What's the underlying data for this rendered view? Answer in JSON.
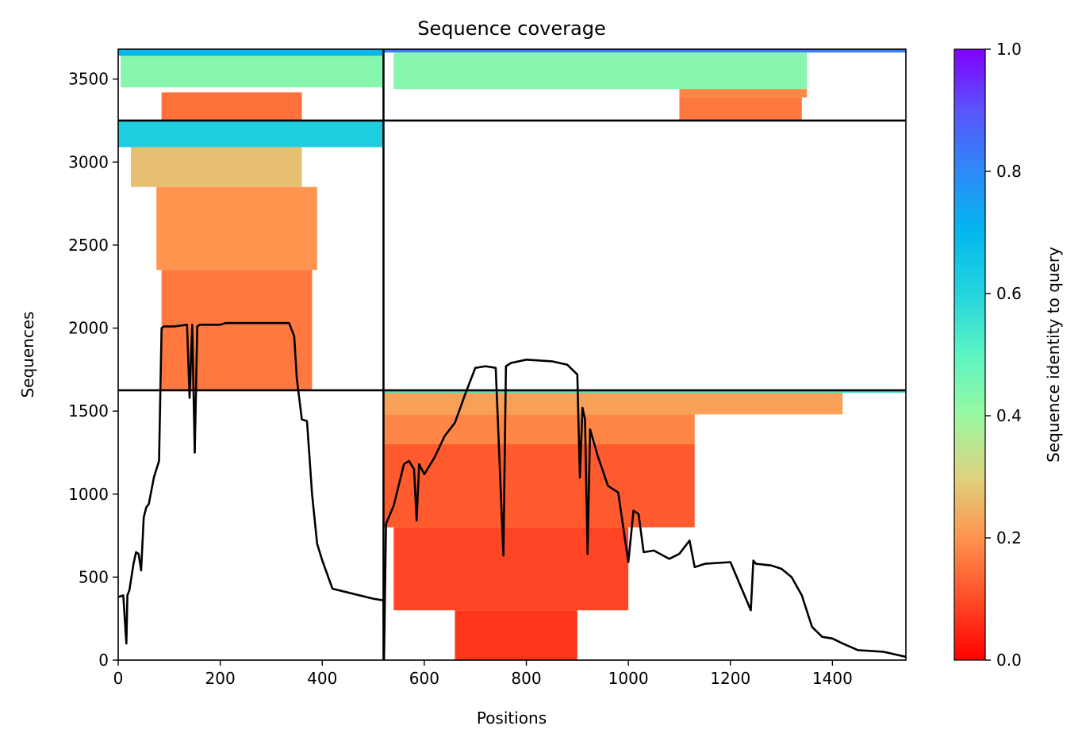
{
  "chart_data": {
    "type": "heatmap",
    "title": "Sequence coverage",
    "xlabel": "Positions",
    "ylabel": "Sequences",
    "xlim": [
      0,
      1544
    ],
    "ylim": [
      0,
      3680
    ],
    "xticks": [
      "0",
      "200",
      "400",
      "600",
      "800",
      "1000",
      "1200",
      "1400"
    ],
    "yticks": [
      "0",
      "500",
      "1000",
      "1500",
      "2000",
      "2500",
      "3000",
      "3500"
    ],
    "colorbar": {
      "label": "Sequence identity to query",
      "ticks": [
        "0.0",
        "0.2",
        "0.4",
        "0.6",
        "0.8",
        "1.0"
      ],
      "range": [
        0,
        1
      ],
      "colormap": "rainbow_r"
    },
    "segment_boundaries_x": [
      520
    ],
    "segment_boundaries_y": [
      1625,
      3250
    ],
    "blocks": [
      {
        "x_start": 0,
        "x_end": 520,
        "y_start": 1625,
        "y_end": 3250,
        "bands": [
          {
            "y0": 3090,
            "y1": 3250,
            "x0": 0,
            "x1": 520,
            "identity": 0.62
          },
          {
            "y0": 2850,
            "y1": 3090,
            "x0": 25,
            "x1": 360,
            "identity": 0.27
          },
          {
            "y0": 2350,
            "y1": 2850,
            "x0": 75,
            "x1": 390,
            "identity": 0.2
          },
          {
            "y0": 1625,
            "y1": 2350,
            "x0": 85,
            "x1": 380,
            "identity": 0.16
          }
        ]
      },
      {
        "x_start": 0,
        "x_end": 520,
        "y_start": 3250,
        "y_end": 3680,
        "bands": [
          {
            "y0": 3640,
            "y1": 3680,
            "x0": 0,
            "x1": 520,
            "identity": 0.7
          },
          {
            "y0": 3450,
            "y1": 3640,
            "x0": 5,
            "x1": 520,
            "identity": 0.43
          },
          {
            "y0": 3250,
            "y1": 3420,
            "x0": 85,
            "x1": 360,
            "identity": 0.15
          }
        ]
      },
      {
        "x_start": 520,
        "x_end": 1544,
        "y_start": 3250,
        "y_end": 3680,
        "bands": [
          {
            "y0": 3660,
            "y1": 3680,
            "x0": 520,
            "x1": 1544,
            "identity": 0.82
          },
          {
            "y0": 3440,
            "y1": 3660,
            "x0": 540,
            "x1": 1350,
            "identity": 0.43
          },
          {
            "y0": 3390,
            "y1": 3440,
            "x0": 1100,
            "x1": 1350,
            "identity": 0.18
          },
          {
            "y0": 3250,
            "y1": 3390,
            "x0": 1100,
            "x1": 1340,
            "identity": 0.16
          }
        ]
      },
      {
        "x_start": 520,
        "x_end": 1544,
        "y_start": 0,
        "y_end": 1625,
        "bands": [
          {
            "y0": 1610,
            "y1": 1625,
            "x0": 520,
            "x1": 1544,
            "identity": 0.55
          },
          {
            "y0": 1480,
            "y1": 1610,
            "x0": 520,
            "x1": 1420,
            "identity": 0.22
          },
          {
            "y0": 1300,
            "y1": 1480,
            "x0": 520,
            "x1": 1130,
            "identity": 0.18
          },
          {
            "y0": 800,
            "y1": 1300,
            "x0": 520,
            "x1": 1130,
            "identity": 0.12
          },
          {
            "y0": 300,
            "y1": 800,
            "x0": 540,
            "x1": 1000,
            "identity": 0.09
          },
          {
            "y0": 0,
            "y1": 300,
            "x0": 660,
            "x1": 900,
            "identity": 0.07
          }
        ]
      }
    ],
    "coverage_line": {
      "x": [
        0,
        10,
        16,
        18,
        22,
        30,
        35,
        40,
        45,
        50,
        55,
        60,
        70,
        80,
        85,
        90,
        110,
        135,
        140,
        145,
        150,
        155,
        160,
        200,
        210,
        250,
        300,
        335,
        345,
        350,
        360,
        370,
        380,
        390,
        400,
        420,
        460,
        500,
        520,
        521,
        525,
        540,
        560,
        570,
        580,
        585,
        590,
        600,
        620,
        640,
        660,
        680,
        700,
        720,
        740,
        755,
        760,
        770,
        800,
        850,
        880,
        900,
        905,
        910,
        915,
        920,
        925,
        940,
        960,
        980,
        1000,
        1010,
        1020,
        1030,
        1050,
        1080,
        1100,
        1120,
        1130,
        1150,
        1200,
        1240,
        1245,
        1250,
        1280,
        1300,
        1320,
        1340,
        1360,
        1380,
        1400,
        1420,
        1450,
        1500,
        1544
      ],
      "y": [
        380,
        390,
        100,
        390,
        420,
        580,
        650,
        640,
        540,
        860,
        920,
        940,
        1100,
        1200,
        2000,
        2010,
        2010,
        2020,
        1580,
        2020,
        1250,
        2010,
        2020,
        2020,
        2030,
        2030,
        2030,
        2030,
        1950,
        1700,
        1450,
        1440,
        1000,
        700,
        600,
        430,
        400,
        370,
        360,
        0,
        820,
        930,
        1180,
        1200,
        1150,
        840,
        1180,
        1120,
        1220,
        1350,
        1430,
        1600,
        1760,
        1770,
        1760,
        630,
        1770,
        1790,
        1810,
        1800,
        1780,
        1720,
        1100,
        1520,
        1450,
        640,
        1390,
        1230,
        1050,
        1010,
        590,
        900,
        880,
        650,
        660,
        610,
        640,
        720,
        560,
        580,
        590,
        300,
        600,
        580,
        570,
        550,
        500,
        390,
        200,
        140,
        130,
        100,
        60,
        50,
        20
      ]
    }
  }
}
